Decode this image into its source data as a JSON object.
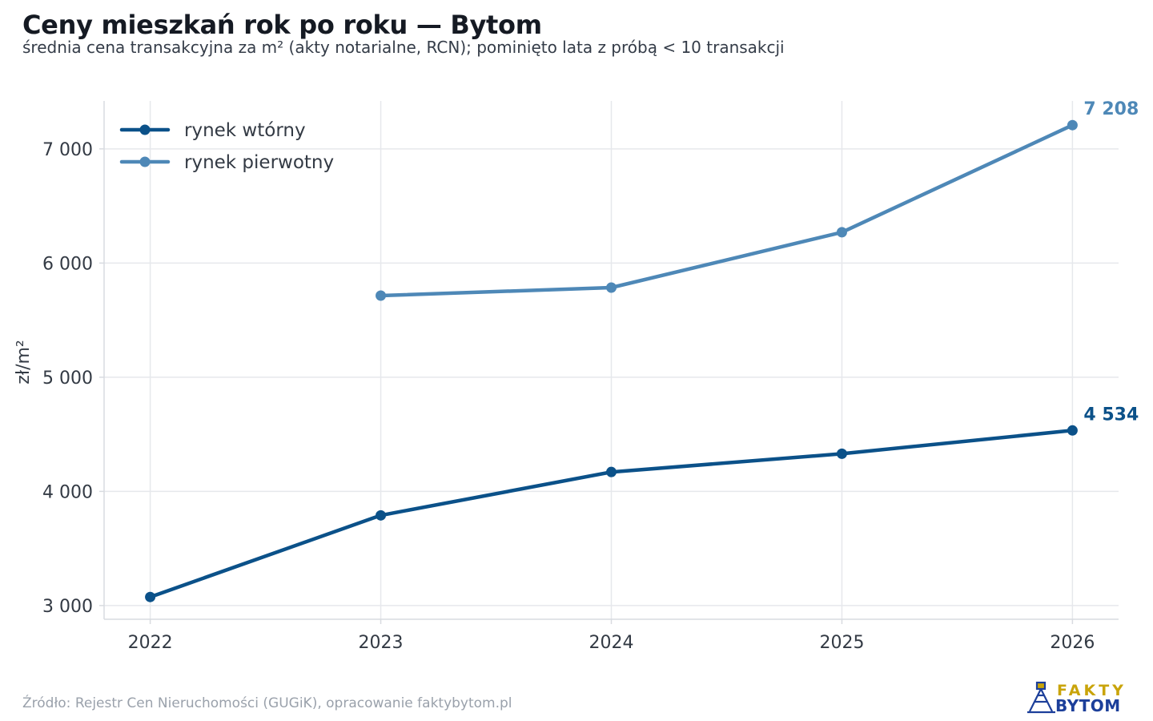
{
  "header": {
    "title": "Ceny mieszkań rok po roku — Bytom",
    "subtitle": "średnia cena transakcyjna za m² (akty notarialne, RCN); pominięto lata z próbą < 10 transakcji"
  },
  "footer": {
    "source": "Źródło: Rejestr Cen Nieruchomości (GUGiK), opracowanie faktybytom.pl"
  },
  "logo": {
    "line1": "FAKTY",
    "line2": "BYTOM",
    "colors": {
      "line1": "#c9a40a",
      "line2": "#1c3f9a"
    }
  },
  "chart_data": {
    "type": "line",
    "title": "Ceny mieszkań rok po roku — Bytom",
    "subtitle": "średnia cena transakcyjna za m² (akty notarialne, RCN); pominięto lata z próbą < 10 transakcji",
    "xlabel": "",
    "ylabel": "zł/m²",
    "x": [
      2022,
      2023,
      2024,
      2025,
      2026
    ],
    "xlim": [
      2021.8,
      2026.2
    ],
    "ylim": [
      2880,
      7420
    ],
    "yticks": [
      3000,
      4000,
      5000,
      6000,
      7000
    ],
    "ytick_labels": [
      "3 000",
      "4 000",
      "5 000",
      "6 000",
      "7 000"
    ],
    "xtick_labels": [
      "2022",
      "2023",
      "2024",
      "2025",
      "2026"
    ],
    "grid": true,
    "legend": "top-left",
    "series": [
      {
        "name": "rynek wtórny",
        "values": [
          3075,
          3790,
          4170,
          4330,
          4534
        ],
        "color": "#0b5189",
        "end_label": "4 534"
      },
      {
        "name": "rynek pierwotny",
        "values": [
          null,
          5715,
          5785,
          6270,
          7208
        ],
        "color": "#4e88b7",
        "end_label": "7 208"
      }
    ]
  }
}
